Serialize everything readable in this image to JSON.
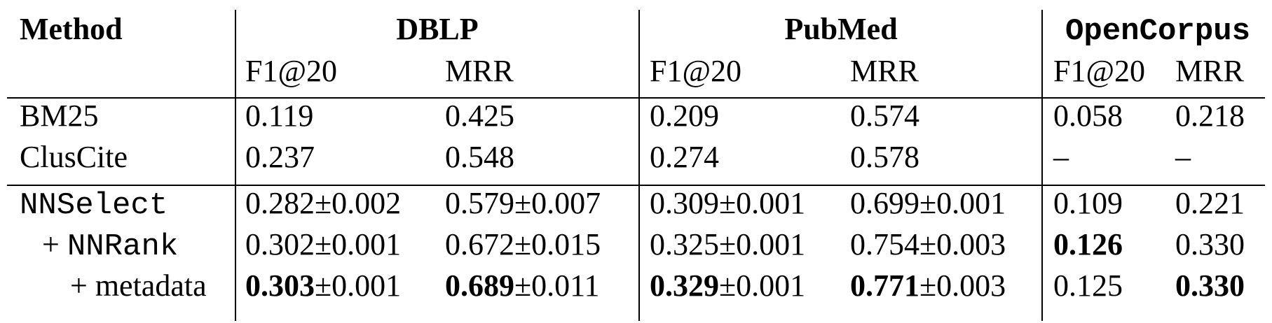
{
  "table": {
    "method_header": "Method",
    "groups": [
      {
        "name": "DBLP",
        "mono": false,
        "columns": [
          "F1@20",
          "MRR"
        ]
      },
      {
        "name": "PubMed",
        "mono": false,
        "columns": [
          "F1@20",
          "MRR"
        ]
      },
      {
        "name": "OpenCorpus",
        "mono": true,
        "columns": [
          "F1@20",
          "MRR"
        ]
      }
    ],
    "sections": [
      [
        {
          "method": {
            "prefix": "",
            "name": "BM25",
            "mono": false
          },
          "cells": [
            {
              "value": "0.119",
              "std": "",
              "bold": false
            },
            {
              "value": "0.425",
              "std": "",
              "bold": false
            },
            {
              "value": "0.209",
              "std": "",
              "bold": false
            },
            {
              "value": "0.574",
              "std": "",
              "bold": false
            },
            {
              "value": "0.058",
              "std": "",
              "bold": false
            },
            {
              "value": "0.218",
              "std": "",
              "bold": false
            }
          ]
        },
        {
          "method": {
            "prefix": "",
            "name": "ClusCite",
            "mono": false
          },
          "cells": [
            {
              "value": "0.237",
              "std": "",
              "bold": false
            },
            {
              "value": "0.548",
              "std": "",
              "bold": false
            },
            {
              "value": "0.274",
              "std": "",
              "bold": false
            },
            {
              "value": "0.578",
              "std": "",
              "bold": false
            },
            {
              "value": "–",
              "std": "",
              "bold": false
            },
            {
              "value": "–",
              "std": "",
              "bold": false
            }
          ]
        }
      ],
      [
        {
          "method": {
            "prefix": "",
            "name": "NNSelect",
            "mono": true
          },
          "cells": [
            {
              "value": "0.282",
              "std": "±0.002",
              "bold": false
            },
            {
              "value": "0.579",
              "std": "±0.007",
              "bold": false
            },
            {
              "value": "0.309",
              "std": "±0.001",
              "bold": false
            },
            {
              "value": "0.699",
              "std": "±0.001",
              "bold": false
            },
            {
              "value": "0.109",
              "std": "",
              "bold": false
            },
            {
              "value": "0.221",
              "std": "",
              "bold": false
            }
          ]
        },
        {
          "method": {
            "prefix": "+",
            "name": "NNRank",
            "mono": true
          },
          "cells": [
            {
              "value": "0.302",
              "std": "±0.001",
              "bold": false
            },
            {
              "value": "0.672",
              "std": "±0.015",
              "bold": false
            },
            {
              "value": "0.325",
              "std": "±0.001",
              "bold": false
            },
            {
              "value": "0.754",
              "std": "±0.003",
              "bold": false
            },
            {
              "value": "0.126",
              "std": "",
              "bold": true
            },
            {
              "value": "0.330",
              "std": "",
              "bold": false
            }
          ]
        },
        {
          "method": {
            "prefix": "+",
            "name": "metadata",
            "mono": false
          },
          "cells": [
            {
              "value": "0.303",
              "std": "±0.001",
              "bold": true
            },
            {
              "value": "0.689",
              "std": "±0.011",
              "bold": true
            },
            {
              "value": "0.329",
              "std": "±0.001",
              "bold": true
            },
            {
              "value": "0.771",
              "std": "±0.003",
              "bold": true
            },
            {
              "value": "0.125",
              "std": "",
              "bold": false
            },
            {
              "value": "0.330",
              "std": "",
              "bold": true
            }
          ]
        }
      ]
    ]
  }
}
